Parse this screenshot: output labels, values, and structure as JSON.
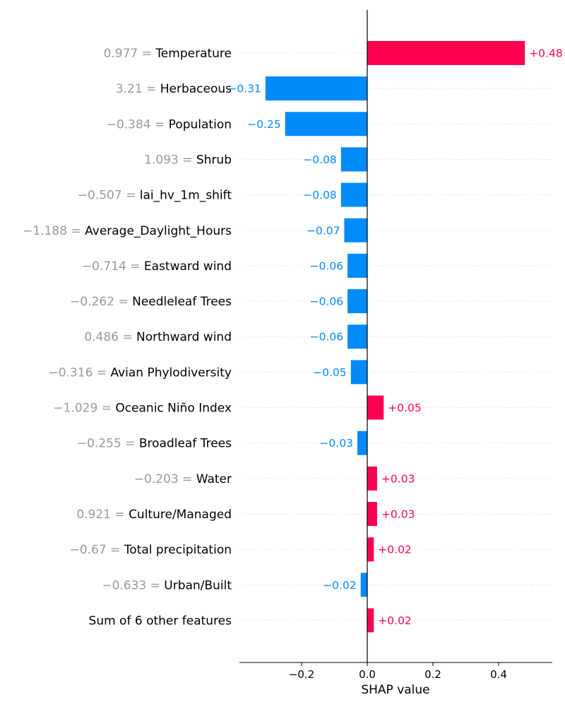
{
  "chart_data": {
    "type": "bar",
    "orientation": "horizontal",
    "xlabel": "SHAP value",
    "xlim": [
      -0.39,
      0.565
    ],
    "xticks": [
      -0.2,
      0.0,
      0.2,
      0.4
    ],
    "xtick_labels": [
      "−0.2",
      "0.0",
      "0.2",
      "0.4"
    ],
    "grid": "dotted horizontal row guides",
    "colors": {
      "positive": "#ff0051",
      "negative": "#008bfb",
      "feature_value": "#999999",
      "feature_name": "#000000"
    },
    "rows": [
      {
        "feature_value": "0.977",
        "feature": "Temperature",
        "value": 0.48,
        "label": "+0.48"
      },
      {
        "feature_value": "3.21",
        "feature": "Herbaceous",
        "value": -0.31,
        "label": "−0.31"
      },
      {
        "feature_value": "−0.384",
        "feature": "Population",
        "value": -0.25,
        "label": "−0.25"
      },
      {
        "feature_value": "1.093",
        "feature": "Shrub",
        "value": -0.08,
        "label": "−0.08"
      },
      {
        "feature_value": "−0.507",
        "feature": "lai_hv_1m_shift",
        "value": -0.08,
        "label": "−0.08"
      },
      {
        "feature_value": "−1.188",
        "feature": "Average_Daylight_Hours",
        "value": -0.07,
        "label": "−0.07"
      },
      {
        "feature_value": "−0.714",
        "feature": "Eastward wind",
        "value": -0.06,
        "label": "−0.06"
      },
      {
        "feature_value": "−0.262",
        "feature": "Needleleaf Trees",
        "value": -0.06,
        "label": "−0.06"
      },
      {
        "feature_value": "0.486",
        "feature": "Northward wind",
        "value": -0.06,
        "label": "−0.06"
      },
      {
        "feature_value": "−0.316",
        "feature": "Avian Phylodiversity",
        "value": -0.05,
        "label": "−0.05"
      },
      {
        "feature_value": "−1.029",
        "feature": "Oceanic Niño Index",
        "value": 0.05,
        "label": "+0.05"
      },
      {
        "feature_value": "−0.255",
        "feature": "Broadleaf Trees",
        "value": -0.03,
        "label": "−0.03"
      },
      {
        "feature_value": "−0.203",
        "feature": "Water",
        "value": 0.03,
        "label": "+0.03"
      },
      {
        "feature_value": "0.921",
        "feature": "Culture/Managed",
        "value": 0.03,
        "label": "+0.03"
      },
      {
        "feature_value": "−0.67",
        "feature": "Total precipitation",
        "value": 0.02,
        "label": "+0.02"
      },
      {
        "feature_value": "−0.633",
        "feature": "Urban/Built",
        "value": -0.02,
        "label": "−0.02"
      },
      {
        "feature_value": "",
        "feature": "Sum of 6 other features",
        "value": 0.02,
        "label": "+0.02"
      }
    ]
  }
}
